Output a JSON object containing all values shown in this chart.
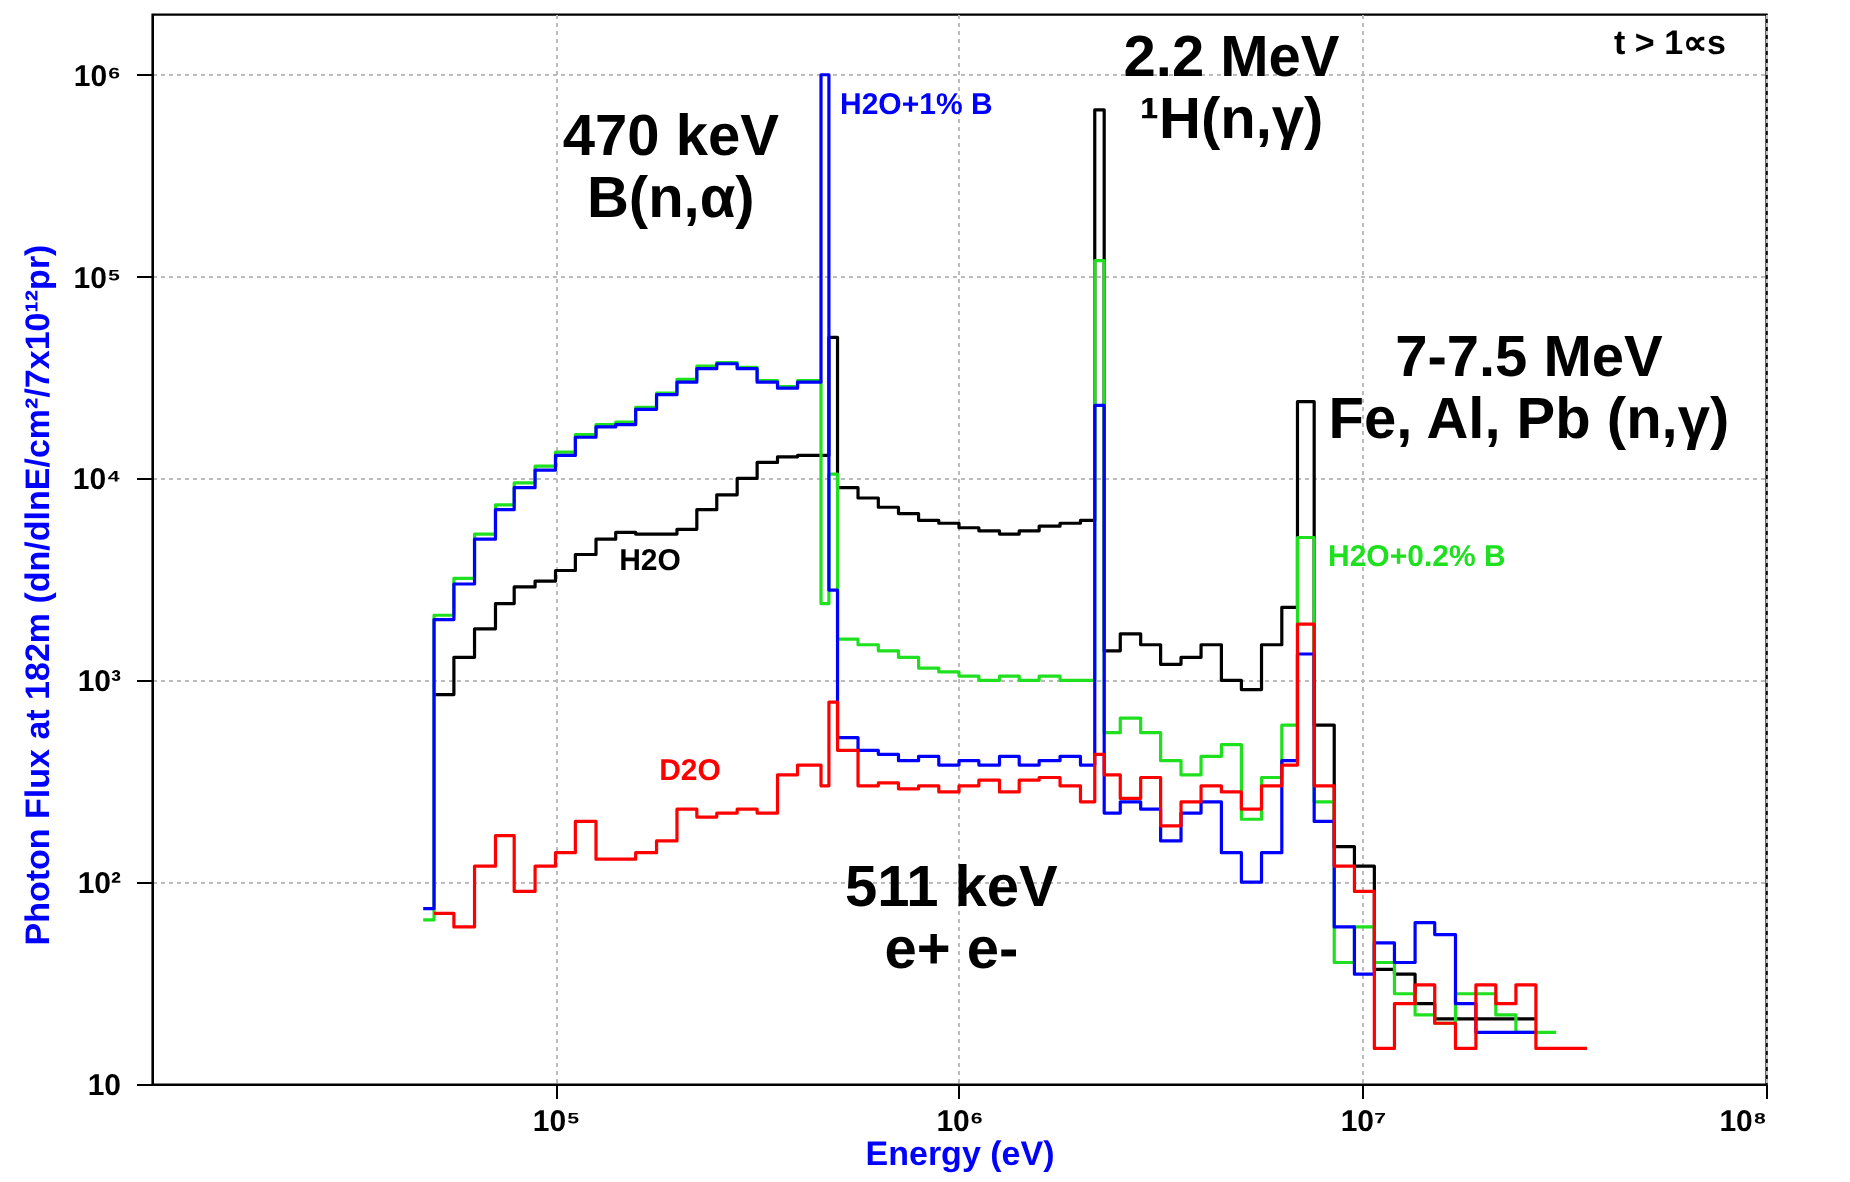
{
  "chart_data": {
    "type": "step",
    "xlabel": "Energy (eV)",
    "ylabel": "Photon Flux at 182m (dn/dlnE/cm²/7x10¹²pr)",
    "log": "xy",
    "grid": true,
    "xlim": [
      10000,
      100000000
    ],
    "xticks": [
      {
        "value": 100000,
        "label": "10⁵"
      },
      {
        "value": 1000000,
        "label": "10⁶"
      },
      {
        "value": 10000000,
        "label": "10⁷"
      },
      {
        "value": 100000000,
        "label": "10⁸"
      }
    ],
    "ylim": [
      10,
      2000000
    ],
    "yticks": [
      10,
      {
        "value": 100,
        "label": "10²"
      },
      {
        "value": 1000,
        "label": "10³"
      },
      {
        "value": 10000,
        "label": "10⁴"
      },
      {
        "value": 100000,
        "label": "10⁵"
      },
      {
        "value": 1000000,
        "label": "10⁶"
      }
    ],
    "x": [
      47000,
      50000,
      56000,
      63000,
      71000,
      79000,
      89000,
      100000,
      112000,
      126000,
      141000,
      158000,
      178000,
      200000,
      224000,
      251000,
      282000,
      316000,
      355000,
      398000,
      455000,
      476000,
      500000,
      562000,
      631000,
      708000,
      794000,
      891000,
      1000000,
      1120000,
      1260000,
      1410000,
      1580000,
      1780000,
      2000000,
      2170000,
      2290000,
      2510000,
      2820000,
      3160000,
      3550000,
      3980000,
      4470000,
      5010000,
      5620000,
      6310000,
      6900000,
      7590000,
      8510000,
      9550000,
      10700000,
      12000000,
      13500000,
      15100000,
      17000000,
      19100000,
      21400000,
      24000000,
      26900000,
      30200000,
      33900000,
      36000000
    ],
    "series": [
      {
        "name": "H2O",
        "color": "#000000",
        "values": [
          null,
          850,
          1300,
          1800,
          2400,
          2900,
          3100,
          3500,
          4200,
          5000,
          5400,
          5300,
          5300,
          5600,
          7000,
          8300,
          10000,
          12000,
          12800,
          13000,
          13000,
          50000,
          9000,
          8000,
          7200,
          6700,
          6200,
          6000,
          5700,
          5500,
          5300,
          5500,
          5800,
          6000,
          6200,
          670000,
          1400,
          1700,
          1500,
          1200,
          1300,
          1500,
          1000,
          900,
          1500,
          2300,
          24000,
          600,
          150,
          120,
          37,
          35,
          25,
          21,
          21,
          21,
          21,
          21,
          21,
          null,
          null,
          null
        ]
      },
      {
        "name": "H2O+0.2% B",
        "color": "#1ee01e",
        "values": [
          65,
          2100,
          3200,
          5300,
          7400,
          9500,
          11500,
          13500,
          16500,
          18500,
          19000,
          22500,
          26500,
          31000,
          36000,
          37500,
          35500,
          30500,
          28500,
          30500,
          2400,
          10500,
          1600,
          1500,
          1400,
          1300,
          1150,
          1100,
          1050,
          1000,
          1050,
          1000,
          1050,
          1000,
          1000,
          120000,
          550,
          650,
          550,
          400,
          340,
          420,
          480,
          205,
          330,
          600,
          5100,
          250,
          40,
          60,
          40,
          28,
          22,
          20,
          28,
          28,
          22,
          18,
          18,
          18,
          null,
          null
        ]
      },
      {
        "name": "H2O+1% B",
        "color": "#0000ff",
        "values": [
          74,
          2000,
          3000,
          5000,
          7000,
          9000,
          11000,
          13000,
          16000,
          18000,
          18500,
          22000,
          26000,
          30000,
          35000,
          37000,
          35000,
          30000,
          28000,
          30000,
          1000000,
          2800,
          520,
          450,
          430,
          400,
          420,
          380,
          400,
          380,
          420,
          380,
          400,
          420,
          380,
          23000,
          220,
          250,
          230,
          160,
          220,
          250,
          140,
          100,
          140,
          400,
          1350,
          200,
          60,
          35,
          50,
          40,
          63,
          55,
          25,
          18,
          18,
          18,
          18,
          null,
          null,
          null
        ]
      },
      {
        "name": "D2O",
        "color": "#ff0000",
        "values": [
          null,
          70,
          60,
          120,
          170,
          90,
          120,
          140,
          200,
          130,
          130,
          140,
          160,
          230,
          210,
          220,
          230,
          220,
          340,
          380,
          300,
          780,
          450,
          300,
          310,
          290,
          300,
          280,
          300,
          320,
          280,
          320,
          330,
          300,
          250,
          430,
          340,
          260,
          330,
          190,
          250,
          300,
          280,
          230,
          300,
          380,
          1900,
          300,
          120,
          90,
          15,
          25,
          31,
          20,
          15,
          31,
          25,
          31,
          15,
          15,
          15,
          15
        ]
      }
    ],
    "annotations": [
      {
        "text": "470 keV\nB(n,α)",
        "x": 465000,
        "y": 1000000
      },
      {
        "text": "2.2 MeV\n¹H(n,γ)",
        "x": 2230000,
        "y": 670000
      },
      {
        "text": "7-7.5 MeV\nFe, Al, Pb (n,γ)",
        "x": 7200000,
        "y": 24000
      },
      {
        "text": "511 keV\ne+ e-",
        "x": 511000,
        "y": 780
      },
      "t > 1∝s"
    ]
  }
}
